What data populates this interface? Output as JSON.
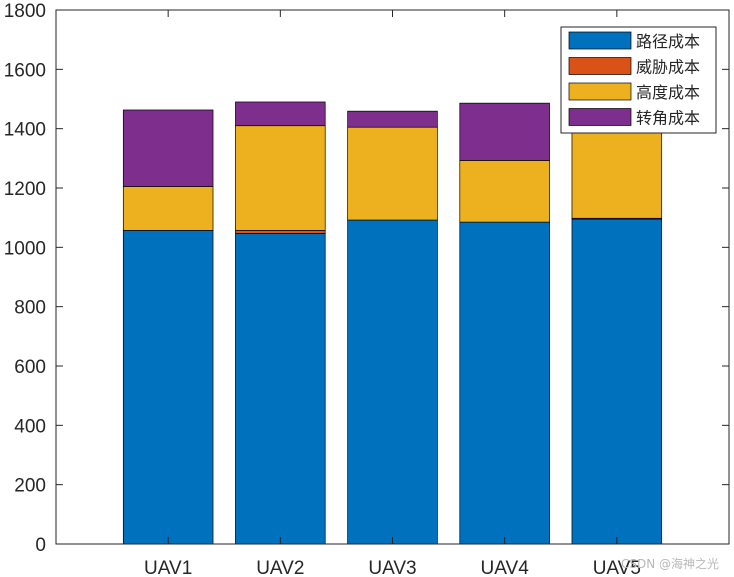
{
  "chart_data": {
    "type": "bar",
    "stacked": true,
    "categories": [
      "UAV1",
      "UAV2",
      "UAV3",
      "UAV4",
      "UAV5"
    ],
    "ylim": [
      0,
      1800
    ],
    "yticks": [
      0,
      200,
      400,
      600,
      800,
      1000,
      1200,
      1400,
      1600,
      1800
    ],
    "series": [
      {
        "name": "路径成本",
        "color": "#0072BD",
        "values": [
          1057,
          1047,
          1092,
          1085,
          1095
        ]
      },
      {
        "name": "威胁成本",
        "color": "#D95319",
        "values": [
          0,
          10,
          0,
          0,
          3
        ]
      },
      {
        "name": "高度成本",
        "color": "#EDB120",
        "values": [
          148,
          353,
          313,
          208,
          312
        ]
      },
      {
        "name": "转角成本",
        "color": "#7E2F8E",
        "values": [
          258,
          80,
          54,
          193,
          80
        ]
      }
    ],
    "legend_position": "top-right",
    "grid": false
  },
  "watermark": "CSDN @海神之光"
}
